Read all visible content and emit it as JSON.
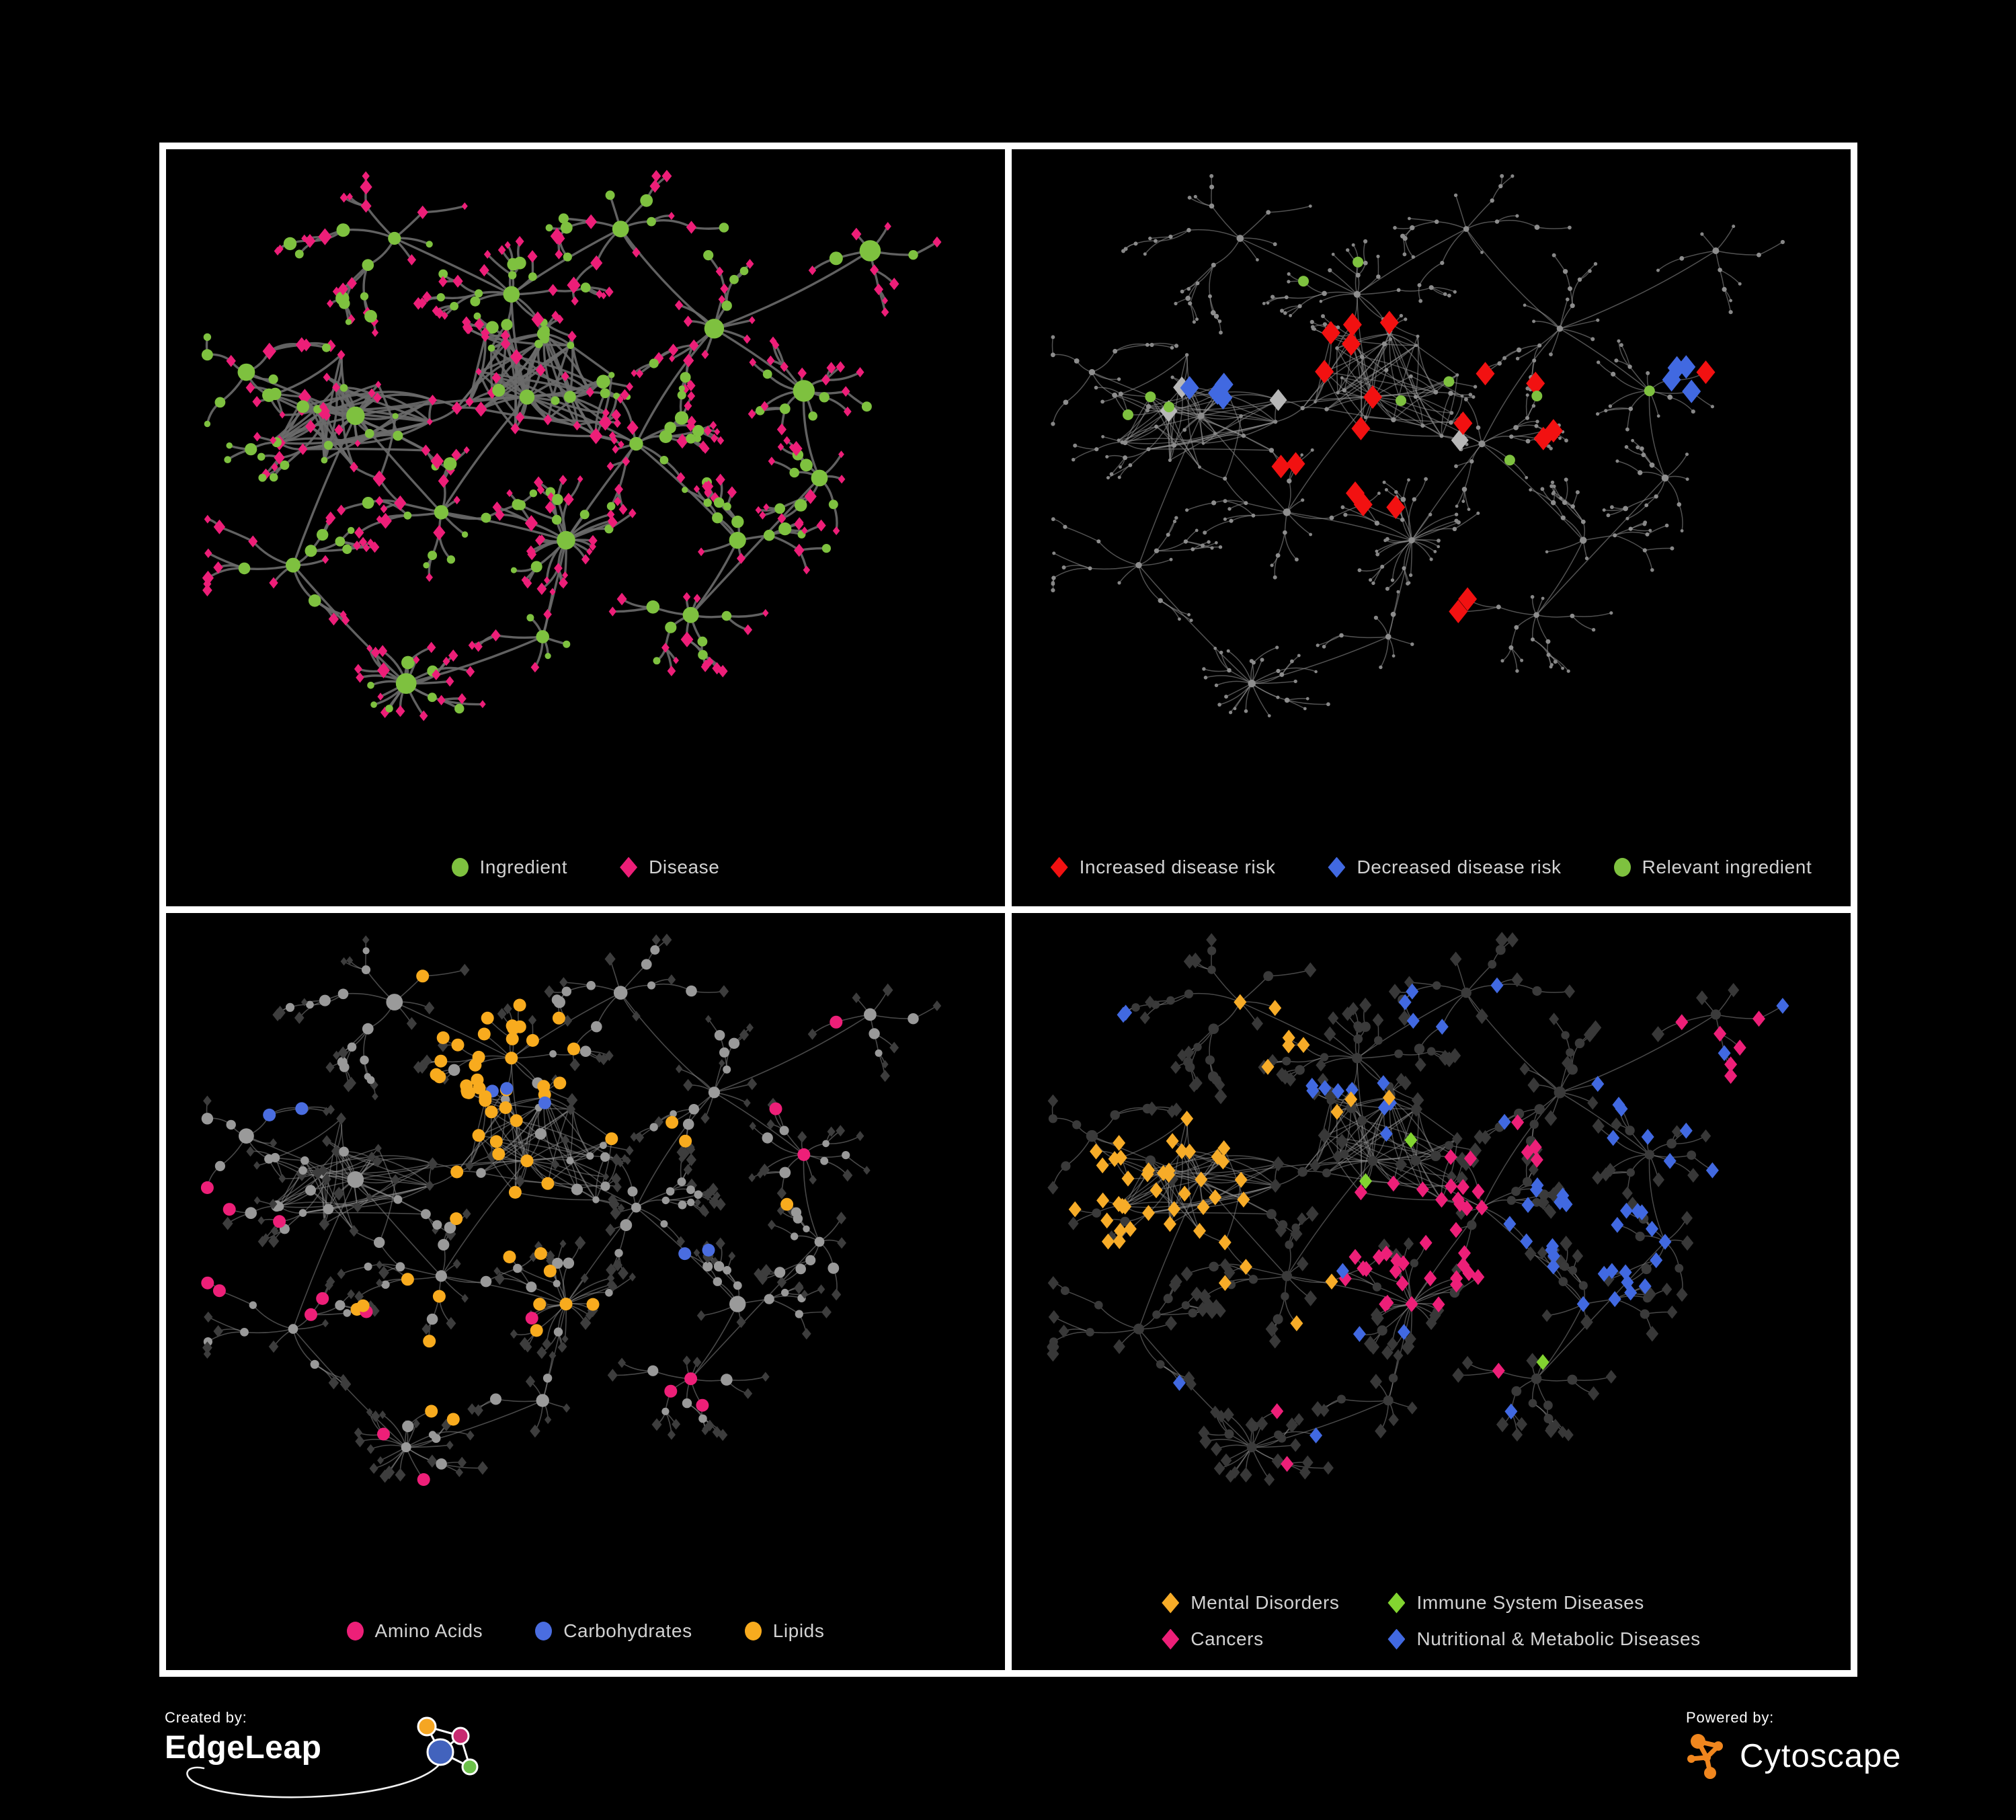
{
  "panels": [
    {
      "name": "ingredient-disease-network",
      "legend": [
        {
          "label": "Ingredient",
          "shape": "circle",
          "color": "#7ec13f"
        },
        {
          "label": "Disease",
          "shape": "diamond",
          "color": "#ed1e78"
        }
      ]
    },
    {
      "name": "disease-risk-network",
      "legend": [
        {
          "label": "Increased disease risk",
          "shape": "diamond",
          "color": "#f21111"
        },
        {
          "label": "Decreased disease risk",
          "shape": "diamond",
          "color": "#4169e1"
        },
        {
          "label": "Relevant ingredient",
          "shape": "circle",
          "color": "#7ec13f"
        }
      ]
    },
    {
      "name": "nutrient-class-network",
      "legend": [
        {
          "label": "Amino Acids",
          "shape": "circle",
          "color": "#ed1f78"
        },
        {
          "label": "Carbohydrates",
          "shape": "circle",
          "color": "#4a6de0"
        },
        {
          "label": "Lipids",
          "shape": "circle",
          "color": "#f8ab1e"
        }
      ]
    },
    {
      "name": "disease-class-network",
      "legend_columns": 2,
      "legend": [
        {
          "label": "Mental Disorders",
          "shape": "diamond",
          "color": "#f7ac28"
        },
        {
          "label": "Immune System Diseases",
          "shape": "diamond",
          "color": "#82d430"
        },
        {
          "label": "Cancers",
          "shape": "diamond",
          "color": "#ed1f78"
        },
        {
          "label": "Nutritional & Metabolic Diseases",
          "shape": "diamond",
          "color": "#4169e1"
        }
      ]
    }
  ],
  "footer": {
    "created_by_label": "Created by:",
    "created_by_name": "EdgeLeap",
    "powered_by_label": "Powered by:",
    "powered_by_name": "Cytoscape",
    "cytoscape_orange": "#f0861e"
  },
  "network": {
    "seed": 11,
    "hubs": [
      [
        0.205,
        0.4,
        13,
        3,
        0.05
      ],
      [
        0.425,
        0.37,
        12,
        3,
        0.05
      ],
      [
        0.405,
        0.205,
        10,
        2,
        0.046
      ],
      [
        0.255,
        0.115,
        6,
        3,
        0.05
      ],
      [
        0.545,
        0.1,
        6,
        3,
        0.048
      ],
      [
        0.665,
        0.26,
        8,
        3,
        0.05
      ],
      [
        0.865,
        0.135,
        5,
        2,
        0.044
      ],
      [
        0.78,
        0.36,
        9,
        1,
        0.042
      ],
      [
        0.8,
        0.5,
        6,
        2,
        0.04
      ],
      [
        0.475,
        0.6,
        22,
        1,
        0.052
      ],
      [
        0.27,
        0.83,
        18,
        1,
        0.048
      ],
      [
        0.635,
        0.72,
        7,
        2,
        0.048
      ],
      [
        0.125,
        0.64,
        6,
        2,
        0.05
      ],
      [
        0.065,
        0.33,
        5,
        2,
        0.045
      ],
      [
        0.315,
        0.555,
        7,
        2,
        0.045
      ],
      [
        0.565,
        0.445,
        7,
        2,
        0.045
      ],
      [
        0.695,
        0.6,
        5,
        2,
        0.045
      ],
      [
        0.445,
        0.755,
        6,
        1,
        0.045
      ]
    ],
    "hub_links": [
      [
        0,
        1
      ],
      [
        0,
        13
      ],
      [
        0,
        12
      ],
      [
        0,
        14
      ],
      [
        1,
        2
      ],
      [
        1,
        14
      ],
      [
        1,
        15
      ],
      [
        2,
        3
      ],
      [
        2,
        4
      ],
      [
        4,
        5
      ],
      [
        5,
        6
      ],
      [
        5,
        7
      ],
      [
        5,
        15
      ],
      [
        7,
        8
      ],
      [
        15,
        16
      ],
      [
        16,
        11
      ],
      [
        9,
        15
      ],
      [
        9,
        14
      ],
      [
        9,
        17
      ],
      [
        17,
        10
      ],
      [
        11,
        8
      ],
      [
        12,
        10
      ]
    ],
    "cross": {
      "centers": [
        [
          0.205,
          0.4
        ],
        [
          0.425,
          0.37
        ]
      ],
      "radius": 0.115,
      "count": 65
    },
    "edge_styles": [
      {
        "color": "#6b6b6b",
        "width": 3.4,
        "opacity": 0.9
      },
      {
        "color": "#949494",
        "width": 1.5,
        "opacity": 0.55
      },
      {
        "color": "#909090",
        "width": 1.6,
        "opacity": 0.5
      },
      {
        "color": "#8f8f8f",
        "width": 1.5,
        "opacity": 0.5
      }
    ],
    "node_styles": [
      {
        "jitter": 0.55,
        "hub": {
          "shape": "circle",
          "color": "#7ec13f",
          "r": 13
        },
        "internal": [
          {
            "shape": "circle",
            "color": "#7ec13f",
            "r": 8,
            "w": 0.54
          },
          {
            "shape": "diamond",
            "color": "#ed1e78",
            "r": 8,
            "w": 0.46
          }
        ],
        "leaf": [
          {
            "shape": "diamond",
            "color": "#ed1e78",
            "r": 6,
            "w": 0.78
          },
          {
            "shape": "circle",
            "color": "#7ec13f",
            "r": 6,
            "w": 0.22
          }
        ]
      },
      {
        "jitter": 0.3,
        "hub": {
          "shape": "circle",
          "color": "#8d8d8d",
          "r": 5
        },
        "internal": [
          {
            "shape": "circle",
            "color": "#8d8d8d",
            "r": 3.4,
            "w": 1
          }
        ],
        "leaf": [
          {
            "shape": "circle",
            "color": "#878787",
            "r": 2.7,
            "w": 1
          }
        ],
        "rules": [
          {
            "name": "increased-risk",
            "shape": "diamond",
            "color": "#f21111",
            "r": 14,
            "max": 33,
            "regions": [
              [
                0.44,
                0.4,
                0.16
              ],
              [
                0.3,
                0.35,
                0.07
              ],
              [
                0.62,
                0.42,
                0.1
              ],
              [
                0.575,
                0.72,
                0.05
              ],
              [
                0.83,
                0.3,
                0.05
              ]
            ],
            "probs": [
              0.16,
              0.12,
              0.1,
              0.25,
              0.1
            ]
          },
          {
            "name": "decreased-risk",
            "shape": "diamond",
            "color": "#4169e1",
            "r": 14,
            "max": 8,
            "regions": [
              [
                0.225,
                0.35,
                0.04
              ],
              [
                0.815,
                0.34,
                0.03
              ]
            ],
            "probs": [
              0.8,
              0.9
            ]
          },
          {
            "name": "neutral-risk",
            "shape": "diamond",
            "color": "#b7b7b7",
            "r": 13,
            "max": 7,
            "regions": [
              [
                0.35,
                0.42,
                0.12
              ],
              [
                0.55,
                0.47,
                0.1
              ],
              [
                0.19,
                0.4,
                0.06
              ]
            ],
            "probs": [
              0.05,
              0.05,
              0.08
            ]
          },
          {
            "name": "relevant-ingredient",
            "shape": "circle",
            "color": "#7ec13f",
            "r": 8,
            "max": 20,
            "regions": [
              [
                0.78,
                0.36,
                0.02
              ],
              [
                0.42,
                0.37,
                0.22
              ],
              [
                0.6,
                0.63,
                0.04
              ],
              [
                0.13,
                0.37,
                0.05
              ]
            ],
            "probs": [
              1,
              0.07,
              0.5,
              0.2
            ]
          }
        ]
      },
      {
        "jitter": 0.55,
        "hub": {
          "shape": "circle",
          "color": "#9a9a9a",
          "r": 10
        },
        "internal": [
          {
            "shape": "circle",
            "color": "#999999",
            "r": 7,
            "w": 1
          }
        ],
        "leaf": [
          {
            "shape": "diamond",
            "color": "#3d3d3d",
            "r": 6.5,
            "w": 1
          }
        ],
        "rules": [
          {
            "name": "lipids",
            "shape": "circle",
            "color": "#f8ab1e",
            "r": 9.5,
            "max": 60,
            "regions": [
              [
                0.405,
                0.205,
                0.105
              ],
              [
                0.475,
                0.6,
                0.035
              ],
              [
                0.38,
                0.4,
                0.09
              ],
              [
                0.5,
                0.57,
                0.3
              ],
              [
                0.3,
                0.12,
                0.08
              ]
            ],
            "probs": [
              0.6,
              0.6,
              0.3,
              0.06,
              0.15
            ]
          },
          {
            "name": "carbohydrates",
            "shape": "circle",
            "color": "#4a6de0",
            "r": 9.5,
            "max": 13,
            "regions": [
              [
                0.41,
                0.225,
                0.075
              ],
              [
                0.12,
                0.28,
                0.04
              ],
              [
                0.72,
                0.55,
                0.1
              ]
            ],
            "probs": [
              0.32,
              0.3,
              0.07
            ]
          },
          {
            "name": "amino-acids",
            "shape": "circle",
            "color": "#ed1f78",
            "r": 9.5,
            "max": 17,
            "regions": [
              [
                0.48,
                0.78,
                0.3
              ],
              [
                0.12,
                0.5,
                0.14
              ],
              [
                0.68,
                0.3,
                0.22
              ],
              [
                0.28,
                0.62,
                0.16
              ],
              [
                0.47,
                0.04,
                0.05
              ]
            ],
            "probs": [
              0.07,
              0.1,
              0.035,
              0.06,
              0.5
            ]
          }
        ]
      },
      {
        "jitter": 0.25,
        "hub": {
          "shape": "circle",
          "color": "#3a3a3a",
          "r": 8
        },
        "internal": [
          {
            "shape": "circle",
            "color": "#3a3a3a",
            "r": 7,
            "w": 1
          }
        ],
        "leaf": [
          {
            "shape": "diamond",
            "color": "#383838",
            "r": 8.5,
            "w": 1
          }
        ],
        "rules": [
          {
            "name": "mental-disorders",
            "shape": "diamond",
            "color": "#f7ac28",
            "r": 9.5,
            "max": 95,
            "regions": [
              [
                0.165,
                0.42,
                0.125
              ],
              [
                0.3,
                0.13,
                0.09
              ],
              [
                0.42,
                0.3,
                0.05
              ],
              [
                0.32,
                0.55,
                0.1
              ]
            ],
            "probs": [
              0.8,
              0.3,
              0.25,
              0.1
            ]
          },
          {
            "name": "cancers",
            "shape": "diamond",
            "color": "#ed1f78",
            "r": 9.5,
            "max": 75,
            "regions": [
              [
                0.47,
                0.5,
                0.115
              ],
              [
                0.865,
                0.17,
                0.07
              ],
              [
                0.56,
                0.35,
                0.08
              ],
              [
                0.3,
                0.78,
                0.08
              ],
              [
                0.6,
                0.8,
                0.1
              ]
            ],
            "probs": [
              0.6,
              0.55,
              0.2,
              0.12,
              0.08
            ]
          },
          {
            "name": "metabolic-diseases",
            "shape": "diamond",
            "color": "#4169e1",
            "r": 9.5,
            "max": 110,
            "regions": [
              [
                0.68,
                0.53,
                0.13
              ],
              [
                0.55,
                0.07,
                0.28
              ],
              [
                0.8,
                0.28,
                0.13
              ],
              [
                0.88,
                0.12,
                0.08
              ],
              [
                0.33,
                0.62,
                0.2
              ],
              [
                0.5,
                0.88,
                0.18
              ],
              [
                0.09,
                0.13,
                0.05
              ]
            ],
            "probs": [
              0.55,
              0.2,
              0.3,
              0.3,
              0.06,
              0.1,
              0.3
            ]
          },
          {
            "name": "immune-diseases",
            "shape": "diamond",
            "color": "#82d430",
            "r": 9.5,
            "max": 8,
            "regions": [
              [
                0.46,
                0.42,
                0.16
              ],
              [
                0.6,
                0.7,
                0.1
              ]
            ],
            "probs": [
              0.05,
              0.06
            ]
          }
        ]
      }
    ]
  }
}
